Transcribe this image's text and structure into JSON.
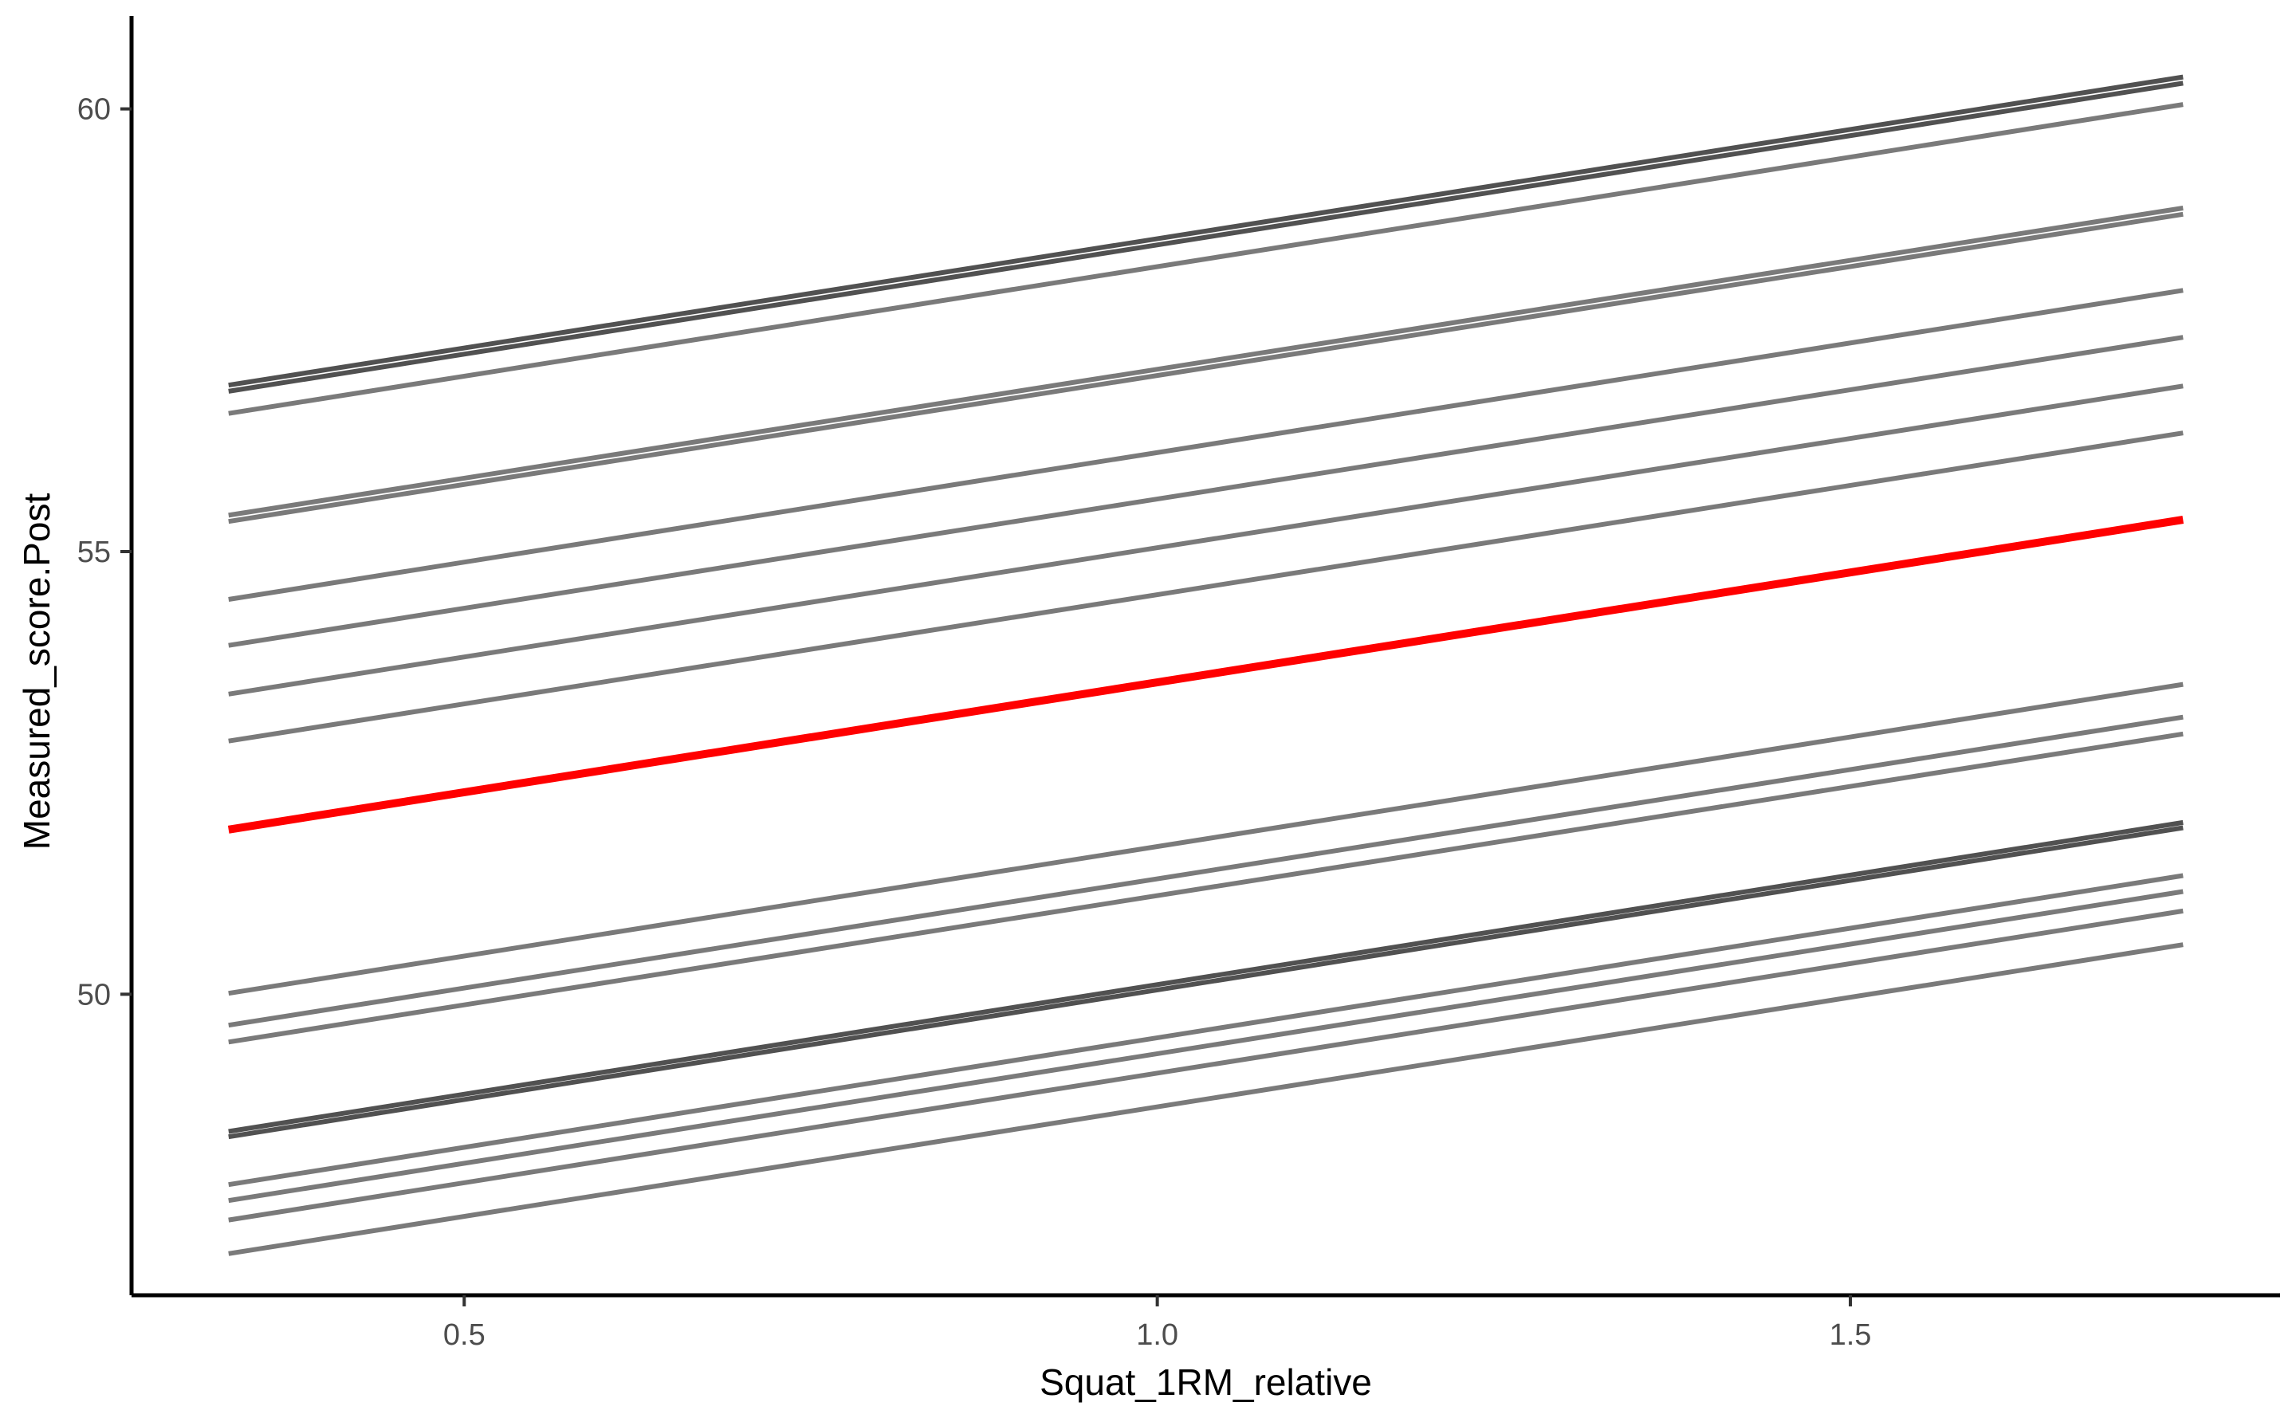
{
  "chart_data": {
    "type": "line",
    "title": "",
    "xlabel": "Squat_1RM_relative",
    "ylabel": "Measured_score.Post",
    "xlim": [
      0.26,
      1.81
    ],
    "ylim": [
      46.6,
      61.05
    ],
    "x_ticks": [
      {
        "value": 0.5,
        "label": "0.5"
      },
      {
        "value": 1.0,
        "label": "1.0"
      },
      {
        "value": 1.5,
        "label": "1.5"
      }
    ],
    "y_ticks": [
      {
        "value": 50,
        "label": "50"
      },
      {
        "value": 55,
        "label": "55"
      },
      {
        "value": 60,
        "label": "60"
      }
    ],
    "grid": false,
    "legend": "none",
    "colors": {
      "background": "#ffffff",
      "axis": "#000000",
      "group_line": "#7a7a7a",
      "group_line_dark": "#333333",
      "overall_line": "#ff0000"
    },
    "series": [
      {
        "x": [
          0.33,
          1.74
        ],
        "y": [
          56.88,
          60.36
        ],
        "role": "group",
        "dark": true
      },
      {
        "x": [
          0.33,
          1.74
        ],
        "y": [
          56.81,
          60.29
        ],
        "role": "group",
        "dark": true
      },
      {
        "x": [
          0.33,
          1.74
        ],
        "y": [
          56.56,
          60.05
        ],
        "role": "group"
      },
      {
        "x": [
          0.33,
          1.74
        ],
        "y": [
          55.41,
          58.88
        ],
        "role": "group"
      },
      {
        "x": [
          0.33,
          1.74
        ],
        "y": [
          55.34,
          58.81
        ],
        "role": "group"
      },
      {
        "x": [
          0.33,
          1.74
        ],
        "y": [
          54.46,
          57.95
        ],
        "role": "group"
      },
      {
        "x": [
          0.33,
          1.74
        ],
        "y": [
          53.94,
          57.42
        ],
        "role": "group"
      },
      {
        "x": [
          0.33,
          1.74
        ],
        "y": [
          53.39,
          56.87
        ],
        "role": "group"
      },
      {
        "x": [
          0.33,
          1.74
        ],
        "y": [
          52.86,
          56.34
        ],
        "role": "group"
      },
      {
        "x": [
          0.33,
          1.74
        ],
        "y": [
          50.01,
          53.5
        ],
        "role": "group"
      },
      {
        "x": [
          0.33,
          1.74
        ],
        "y": [
          49.65,
          53.13
        ],
        "role": "group"
      },
      {
        "x": [
          0.33,
          1.74
        ],
        "y": [
          49.46,
          52.94
        ],
        "role": "group"
      },
      {
        "x": [
          0.33,
          1.74
        ],
        "y": [
          48.45,
          51.94
        ],
        "role": "group",
        "dark": true
      },
      {
        "x": [
          0.33,
          1.74
        ],
        "y": [
          48.39,
          51.88
        ],
        "role": "group",
        "dark": true
      },
      {
        "x": [
          0.33,
          1.74
        ],
        "y": [
          47.85,
          51.34
        ],
        "role": "group"
      },
      {
        "x": [
          0.33,
          1.74
        ],
        "y": [
          47.67,
          51.16
        ],
        "role": "group"
      },
      {
        "x": [
          0.33,
          1.74
        ],
        "y": [
          47.45,
          50.94
        ],
        "role": "group"
      },
      {
        "x": [
          0.33,
          1.74
        ],
        "y": [
          47.07,
          50.56
        ],
        "role": "group"
      },
      {
        "x": [
          0.33,
          1.74
        ],
        "y": [
          51.86,
          55.36
        ],
        "role": "overall"
      }
    ]
  }
}
